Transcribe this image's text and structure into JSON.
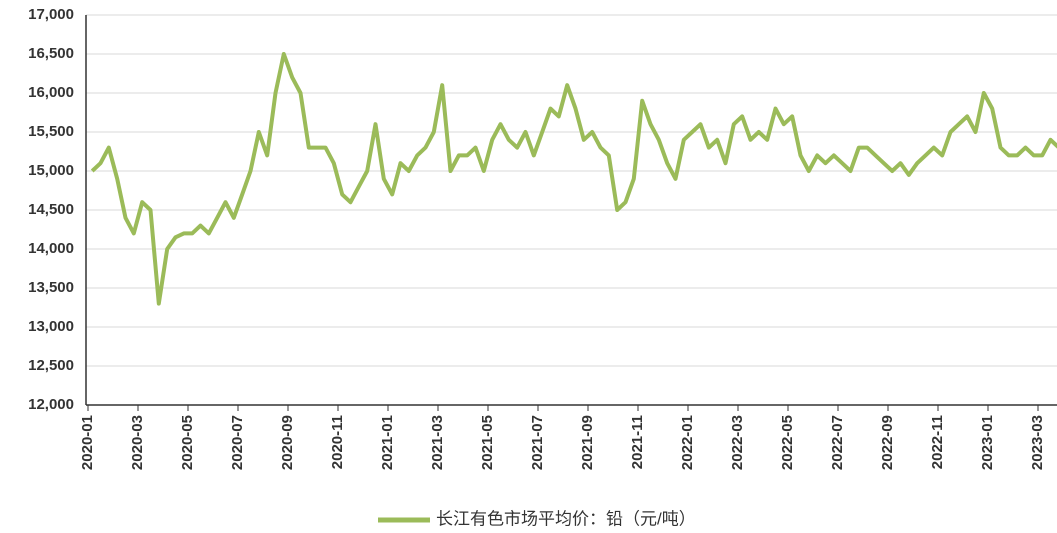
{
  "chart_data": {
    "type": "line",
    "x": [
      "2020-01",
      "2020-01",
      "2020-01",
      "2020-02",
      "2020-02",
      "2020-02",
      "2020-03",
      "2020-03",
      "2020-03",
      "2020-04",
      "2020-04",
      "2020-04",
      "2020-05",
      "2020-05",
      "2020-05",
      "2020-06",
      "2020-06",
      "2020-06",
      "2020-07",
      "2020-07",
      "2020-07",
      "2020-08",
      "2020-08",
      "2020-08",
      "2020-09",
      "2020-09",
      "2020-09",
      "2020-10",
      "2020-10",
      "2020-10",
      "2020-11",
      "2020-11",
      "2020-11",
      "2020-12",
      "2020-12",
      "2020-12",
      "2021-01",
      "2021-01",
      "2021-01",
      "2021-02",
      "2021-02",
      "2021-02",
      "2021-03",
      "2021-03",
      "2021-03",
      "2021-04",
      "2021-04",
      "2021-04",
      "2021-05",
      "2021-05",
      "2021-05",
      "2021-06",
      "2021-06",
      "2021-06",
      "2021-07",
      "2021-07",
      "2021-07",
      "2021-08",
      "2021-08",
      "2021-08",
      "2021-09",
      "2021-09",
      "2021-09",
      "2021-10",
      "2021-10",
      "2021-10",
      "2021-11",
      "2021-11",
      "2021-11",
      "2021-12",
      "2021-12",
      "2021-12",
      "2022-01",
      "2022-01",
      "2022-01",
      "2022-02",
      "2022-02",
      "2022-02",
      "2022-03",
      "2022-03",
      "2022-03",
      "2022-04",
      "2022-04",
      "2022-04",
      "2022-05",
      "2022-05",
      "2022-05",
      "2022-06",
      "2022-06",
      "2022-06",
      "2022-07",
      "2022-07",
      "2022-07",
      "2022-08",
      "2022-08",
      "2022-08",
      "2022-09",
      "2022-09",
      "2022-09",
      "2022-10",
      "2022-10",
      "2022-10",
      "2022-11",
      "2022-11",
      "2022-11",
      "2022-12",
      "2022-12",
      "2022-12",
      "2023-01",
      "2023-01",
      "2023-01",
      "2023-02",
      "2023-02",
      "2023-02",
      "2023-03",
      "2023-03",
      "2023-03"
    ],
    "series": [
      {
        "name": "长江有色市场平均价：铅（元/吨）",
        "color": "#9bbb59",
        "values": [
          15000,
          15100,
          15300,
          14900,
          14400,
          14200,
          14600,
          14500,
          13300,
          14000,
          14150,
          14200,
          14200,
          14300,
          14200,
          14400,
          14600,
          14400,
          14700,
          15000,
          15500,
          15200,
          16000,
          16500,
          16200,
          16000,
          15300,
          15300,
          15300,
          15100,
          14700,
          14600,
          14800,
          15000,
          15600,
          14900,
          14700,
          15100,
          15000,
          15200,
          15300,
          15500,
          16100,
          15000,
          15200,
          15200,
          15300,
          15000,
          15400,
          15600,
          15400,
          15300,
          15500,
          15200,
          15500,
          15800,
          15700,
          16100,
          15800,
          15400,
          15500,
          15300,
          15200,
          14500,
          14600,
          14900,
          15900,
          15600,
          15400,
          15100,
          14900,
          15400,
          15500,
          15600,
          15300,
          15400,
          15100,
          15600,
          15700,
          15400,
          15500,
          15400,
          15800,
          15600,
          15700,
          15200,
          15000,
          15200,
          15100,
          15200,
          15100,
          15000,
          15300,
          15300,
          15200,
          15100,
          15000,
          15100,
          14950,
          15100,
          15200,
          15300,
          15200,
          15500,
          15600,
          15700,
          15500,
          16000,
          15800,
          15300,
          15200,
          15200,
          15300,
          15200,
          15200,
          15400,
          15300
        ]
      }
    ],
    "ylim": [
      12000,
      17000
    ],
    "yticks": [
      {
        "value": 12000,
        "label": "12,000"
      },
      {
        "value": 12500,
        "label": "12,500"
      },
      {
        "value": 13000,
        "label": "13,000"
      },
      {
        "value": 13500,
        "label": "13,500"
      },
      {
        "value": 14000,
        "label": "14,000"
      },
      {
        "value": 14500,
        "label": "14,500"
      },
      {
        "value": 15000,
        "label": "15,000"
      },
      {
        "value": 15500,
        "label": "15,500"
      },
      {
        "value": 16000,
        "label": "16,000"
      },
      {
        "value": 16500,
        "label": "16,500"
      },
      {
        "value": 17000,
        "label": "17,000"
      }
    ],
    "xticks": [
      "2020-01",
      "2020-03",
      "2020-05",
      "2020-07",
      "2020-09",
      "2020-11",
      "2021-01",
      "2021-03",
      "2021-05",
      "2021-07",
      "2021-09",
      "2021-11",
      "2022-01",
      "2022-03",
      "2022-05",
      "2022-07",
      "2022-09",
      "2022-11",
      "2023-01",
      "2023-03"
    ],
    "grid": true
  }
}
